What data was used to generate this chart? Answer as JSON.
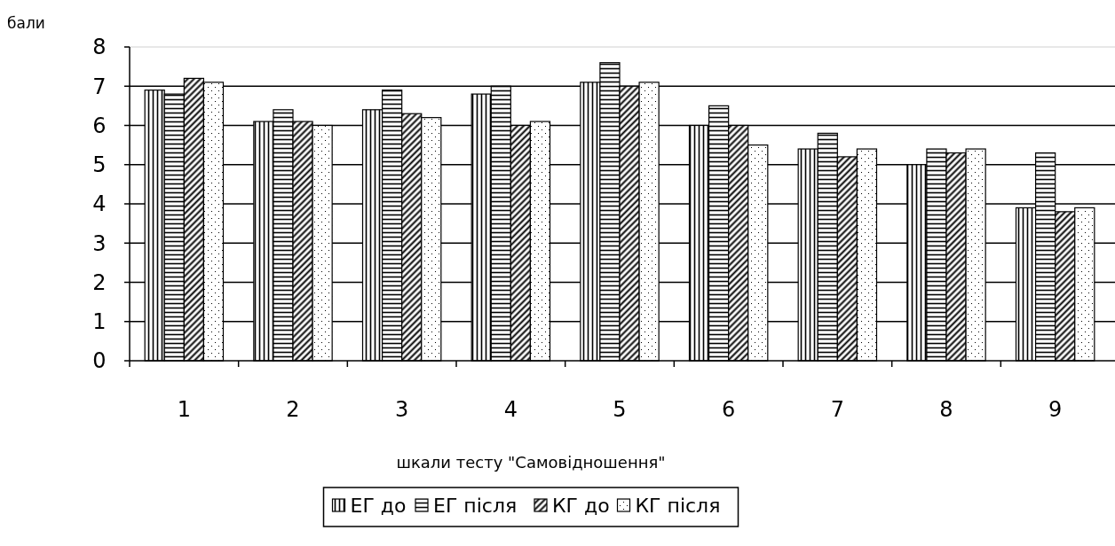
{
  "chart_data": {
    "type": "bar",
    "ylabel": "бали",
    "xlabel": "шкали тесту \"Самовідношення\"",
    "categories": [
      "1",
      "2",
      "3",
      "4",
      "5",
      "6",
      "7",
      "8",
      "9"
    ],
    "series": [
      {
        "name": "ЕГ до",
        "color": "#000000",
        "values": [
          6.9,
          6.1,
          6.4,
          6.8,
          7.1,
          6.0,
          5.4,
          5.0,
          3.9
        ]
      },
      {
        "name": "ЕГ після",
        "color": "#000000",
        "values": [
          6.8,
          6.4,
          6.9,
          7.0,
          7.6,
          6.5,
          5.8,
          5.4,
          5.3
        ]
      },
      {
        "name": "КГ до",
        "color": "#000000",
        "values": [
          7.2,
          6.1,
          6.3,
          6.0,
          7.0,
          6.0,
          5.2,
          5.3,
          3.8
        ]
      },
      {
        "name": "КГ після",
        "color": "#000000",
        "values": [
          7.1,
          6.0,
          6.2,
          6.1,
          7.1,
          5.5,
          5.4,
          5.4,
          3.9
        ]
      }
    ],
    "ylim": [
      0,
      8
    ],
    "yticks": [
      0,
      1,
      2,
      3,
      4,
      5,
      6,
      7,
      8
    ],
    "grid": "y",
    "legend": "bottom"
  }
}
